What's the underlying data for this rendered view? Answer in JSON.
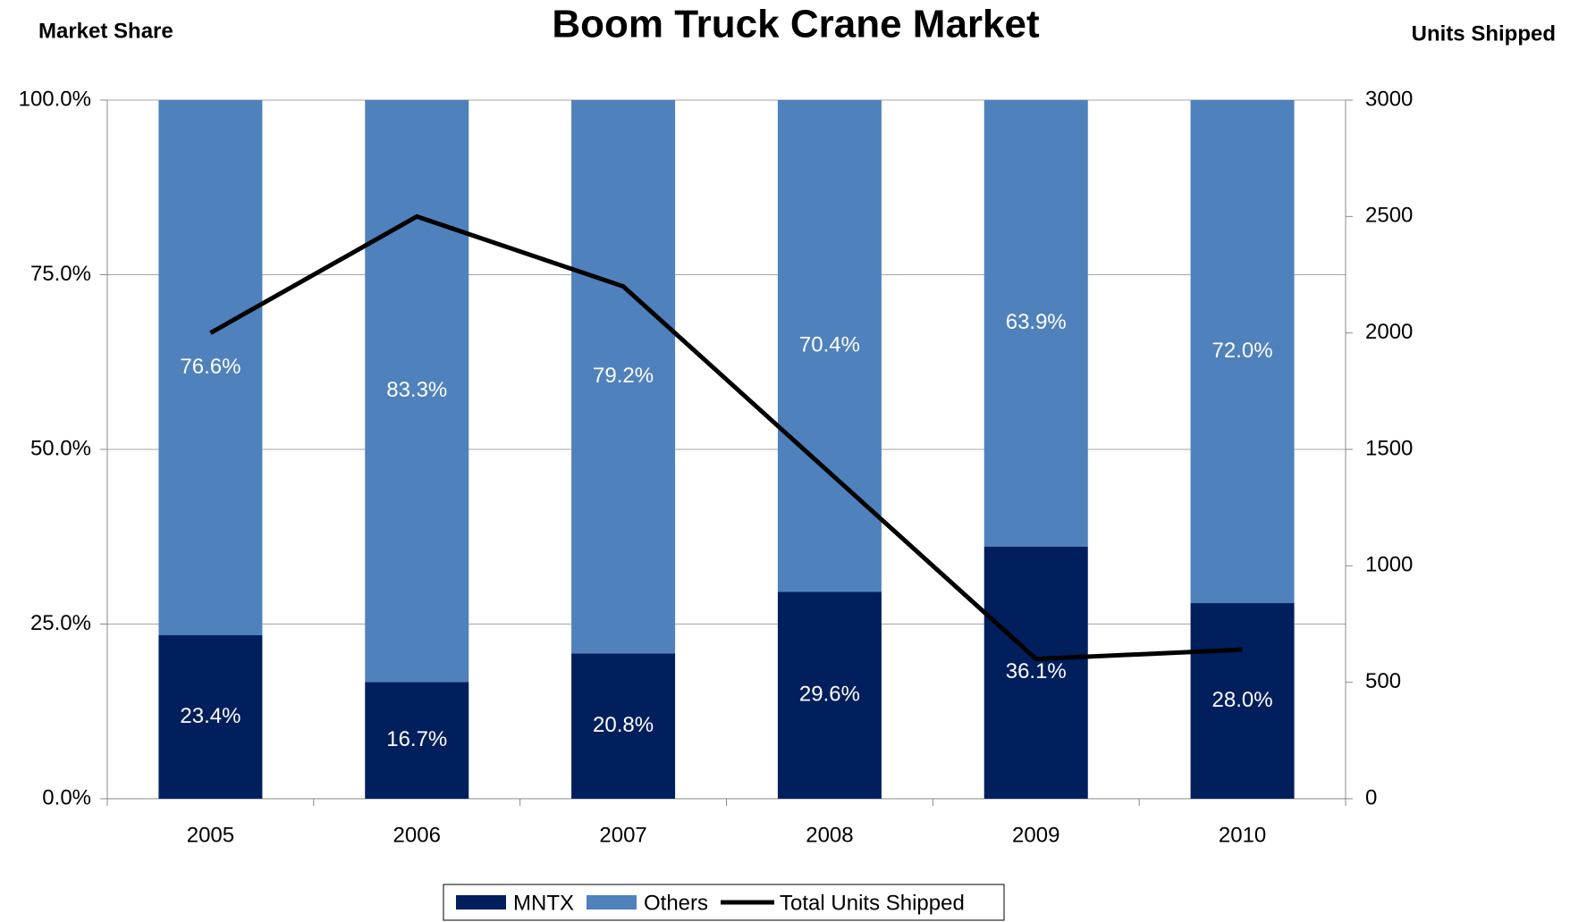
{
  "chart_data": {
    "type": "bar",
    "stacked": true,
    "title": "Boom Truck Crane Market",
    "y_axis_label": "Market Share",
    "y2_axis_label": "Units Shipped",
    "categories": [
      "2005",
      "2006",
      "2007",
      "2008",
      "2009",
      "2010"
    ],
    "series": [
      {
        "name": "MNTX",
        "color": "#001f5c",
        "values": [
          23.4,
          16.7,
          20.8,
          29.6,
          36.1,
          28.0
        ],
        "value_labels": [
          "23.4%",
          "16.7%",
          "20.8%",
          "29.6%",
          "36.1%",
          "28.0%"
        ]
      },
      {
        "name": "Others",
        "color": "#4f81bd",
        "values": [
          76.6,
          83.3,
          79.2,
          70.4,
          63.9,
          72.0
        ],
        "value_labels": [
          "76.6%",
          "83.3%",
          "79.2%",
          "70.4%",
          "63.9%",
          "72.0%"
        ]
      },
      {
        "name": "Total Units Shipped",
        "type": "line",
        "axis": "y2",
        "color": "#000000",
        "values": [
          2000,
          2500,
          2200,
          1400,
          600,
          640
        ]
      }
    ],
    "ylim": [
      0,
      100
    ],
    "yticks": [
      {
        "value": 0,
        "label": "0.0%"
      },
      {
        "value": 25,
        "label": "25.0%"
      },
      {
        "value": 50,
        "label": "50.0%"
      },
      {
        "value": 75,
        "label": "75.0%"
      },
      {
        "value": 100,
        "label": "100.0%"
      }
    ],
    "y2lim": [
      0,
      3000
    ],
    "y2ticks": [
      0,
      500,
      1000,
      1500,
      2000,
      2500,
      3000
    ],
    "grid": true,
    "legend": "bottom"
  }
}
